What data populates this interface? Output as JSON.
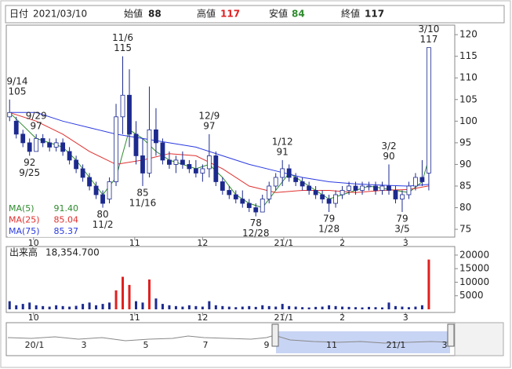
{
  "header": {
    "date_label": "日付",
    "date": "2021/03/10",
    "open_label": "始値",
    "open": 88,
    "high_label": "高値",
    "high": 117,
    "low_label": "安値",
    "low": 84,
    "close_label": "終値",
    "close": 117
  },
  "chart_data": [
    {
      "type": "candlestick",
      "open": [
        101,
        100,
        97,
        95,
        93,
        96,
        95,
        94,
        95,
        93,
        91,
        89,
        87,
        85,
        83,
        82,
        86,
        101,
        106,
        97,
        92,
        88,
        98,
        95,
        91,
        90,
        91,
        90,
        89,
        88,
        89,
        92,
        86,
        84,
        83,
        82,
        81,
        80,
        79,
        82,
        85,
        87,
        89,
        87,
        86,
        85,
        84,
        83,
        82,
        81,
        83,
        84,
        85,
        84,
        85,
        85,
        84,
        85,
        84,
        82,
        83,
        85,
        87,
        88
      ],
      "high": [
        105,
        101,
        98,
        96,
        97,
        97,
        96,
        96,
        96,
        94,
        92,
        90,
        88,
        86,
        84,
        87,
        104,
        115,
        112,
        100,
        96,
        108,
        103,
        96,
        93,
        92,
        93,
        91,
        91,
        90,
        97,
        93,
        87,
        85,
        84,
        84,
        82,
        81,
        83,
        86,
        88,
        91,
        90,
        88,
        87,
        86,
        85,
        84,
        83,
        84,
        85,
        86,
        86,
        86,
        86,
        86,
        86,
        90,
        85,
        84,
        86,
        88,
        91,
        117
      ],
      "low": [
        100,
        96,
        94,
        92,
        93,
        94,
        93,
        93,
        92,
        90,
        88,
        86,
        84,
        82,
        80,
        81,
        85,
        97,
        94,
        90,
        85,
        87,
        92,
        90,
        89,
        88,
        89,
        88,
        87,
        86,
        87,
        85,
        83,
        82,
        81,
        80,
        79,
        78,
        79,
        81,
        84,
        85,
        86,
        85,
        84,
        83,
        82,
        81,
        79,
        80,
        82,
        83,
        83,
        83,
        84,
        83,
        83,
        83,
        81,
        79,
        82,
        84,
        85,
        84
      ],
      "close": [
        102,
        97,
        95,
        93,
        96,
        95,
        94,
        95,
        93,
        91,
        89,
        87,
        85,
        83,
        81,
        86,
        101,
        106,
        97,
        92,
        88,
        98,
        95,
        91,
        90,
        91,
        90,
        89,
        88,
        89,
        92,
        86,
        84,
        83,
        82,
        81,
        80,
        79,
        82,
        85,
        87,
        89,
        87,
        86,
        85,
        84,
        83,
        82,
        81,
        83,
        84,
        85,
        84,
        85,
        85,
        84,
        85,
        84,
        82,
        83,
        85,
        87,
        86,
        117
      ],
      "up_color": "#ffffff",
      "down_color": "#1c2a8f",
      "xlim": [
        -0.5,
        66.9
      ],
      "xticks": [
        {
          "value": 3.6,
          "label": "10"
        },
        {
          "value": 18.8,
          "label": "11"
        },
        {
          "value": 29,
          "label": "12"
        },
        {
          "value": 41.2,
          "label": "21/1"
        },
        {
          "value": 50,
          "label": "2"
        },
        {
          "value": 59.5,
          "label": "3"
        }
      ],
      "ylim": [
        73.2,
        122.2
      ],
      "yticks": [
        75,
        80,
        85,
        90,
        95,
        100,
        105,
        110,
        115,
        120
      ],
      "ma_lines": [
        {
          "name": "MA(5)",
          "last": "91.40",
          "color": "#2e8b2e",
          "x": [
            0,
            2,
            4,
            6,
            8,
            10,
            12,
            14,
            16,
            18,
            20,
            22,
            24,
            26,
            28,
            30,
            32,
            34,
            36,
            38,
            40,
            42,
            44,
            46,
            48,
            50,
            52,
            54,
            56,
            58,
            60,
            62,
            63
          ],
          "values": [
            102,
            99,
            96,
            95,
            94,
            91,
            87,
            83,
            87,
            98,
            96,
            93,
            91,
            90,
            89,
            90,
            87,
            83,
            81,
            80,
            84,
            88,
            86,
            84,
            82,
            83,
            84,
            85,
            84.5,
            84,
            83.5,
            86,
            91.4
          ]
        },
        {
          "name": "MA(25)",
          "last": "85.04",
          "color": "#e03030",
          "x": [
            0,
            4,
            8,
            12,
            16,
            20,
            24,
            28,
            32,
            36,
            40,
            44,
            48,
            52,
            56,
            60,
            63
          ],
          "values": [
            102,
            100,
            97,
            93,
            90,
            91,
            92.5,
            92,
            89,
            85,
            83.5,
            84,
            84,
            83.5,
            84,
            84.2,
            85.04
          ]
        },
        {
          "name": "MA(75)",
          "last": "85.37",
          "color": "#2a3ae0",
          "x": [
            0,
            4,
            8,
            12,
            16,
            20,
            24,
            28,
            32,
            36,
            40,
            44,
            48,
            52,
            56,
            60,
            63
          ],
          "values": [
            102,
            102,
            100,
            98.5,
            97,
            96,
            95,
            94,
            92,
            90,
            88.5,
            87,
            86,
            85.5,
            85.2,
            85,
            85.37
          ]
        }
      ],
      "annotations": [
        {
          "date": "9/14",
          "value": 105,
          "kind": "high"
        },
        {
          "date": "9/25",
          "value": 92,
          "kind": "low"
        },
        {
          "date": "9/29",
          "value": 97,
          "kind": "high"
        },
        {
          "date": "11/2",
          "value": 80,
          "kind": "low"
        },
        {
          "date": "11/6",
          "value": 115,
          "kind": "high"
        },
        {
          "date": "11/16",
          "value": 85,
          "kind": "low"
        },
        {
          "date": "12/9",
          "value": 97,
          "kind": "high"
        },
        {
          "date": "12/28",
          "value": 78,
          "kind": "low"
        },
        {
          "date": "1/12",
          "value": 91,
          "kind": "high"
        },
        {
          "date": "1/28",
          "value": 79,
          "kind": "low"
        },
        {
          "date": "3/2",
          "value": 90,
          "kind": "high"
        },
        {
          "date": "3/5",
          "value": 79,
          "kind": "low"
        },
        {
          "date": "3/10",
          "value": 117,
          "kind": "high"
        }
      ]
    },
    {
      "type": "bar",
      "title": "出来高",
      "last": "18,354.700",
      "values": [
        3000,
        1500,
        2000,
        2500,
        1500,
        1200,
        1000,
        1500,
        1200,
        1000,
        1300,
        2000,
        2500,
        1500,
        2000,
        2500,
        7000,
        12000,
        9000,
        3000,
        2500,
        11000,
        4000,
        2000,
        1500,
        1200,
        1000,
        1500,
        1200,
        1000,
        3000,
        1500,
        1200,
        1000,
        800,
        1000,
        1200,
        900,
        1500,
        1200,
        1000,
        2000,
        1200,
        1000,
        800,
        700,
        900,
        1000,
        1500,
        1200,
        1000,
        900,
        800,
        700,
        900,
        800,
        700,
        2500,
        1200,
        1000,
        800,
        1000,
        1500,
        18354.7
      ],
      "colors": [
        "#1c2a8f",
        "#1c2a8f",
        "#1c2a8f",
        "#1c2a8f",
        "#1c2a8f",
        "#1c2a8f",
        "#1c2a8f",
        "#1c2a8f",
        "#1c2a8f",
        "#1c2a8f",
        "#1c2a8f",
        "#1c2a8f",
        "#1c2a8f",
        "#1c2a8f",
        "#1c2a8f",
        "#1c2a8f",
        "#e02020",
        "#e02020",
        "#e02020",
        "#1c2a8f",
        "#1c2a8f",
        "#e02020",
        "#1c2a8f",
        "#1c2a8f",
        "#1c2a8f",
        "#1c2a8f",
        "#1c2a8f",
        "#1c2a8f",
        "#1c2a8f",
        "#1c2a8f",
        "#1c2a8f",
        "#1c2a8f",
        "#1c2a8f",
        "#1c2a8f",
        "#1c2a8f",
        "#1c2a8f",
        "#1c2a8f",
        "#1c2a8f",
        "#1c2a8f",
        "#1c2a8f",
        "#1c2a8f",
        "#1c2a8f",
        "#1c2a8f",
        "#1c2a8f",
        "#1c2a8f",
        "#1c2a8f",
        "#1c2a8f",
        "#1c2a8f",
        "#1c2a8f",
        "#1c2a8f",
        "#1c2a8f",
        "#1c2a8f",
        "#1c2a8f",
        "#1c2a8f",
        "#1c2a8f",
        "#1c2a8f",
        "#1c2a8f",
        "#1c2a8f",
        "#1c2a8f",
        "#1c2a8f",
        "#1c2a8f",
        "#1c2a8f",
        "#1c2a8f",
        "#e02020"
      ],
      "xlim": [
        -0.5,
        66.9
      ],
      "ylim": [
        0,
        22000
      ],
      "yticks": [
        5000,
        10000,
        15000,
        20000
      ]
    }
  ],
  "navigator": {
    "labels": [
      "20/1",
      "3",
      "5",
      "7",
      "9",
      "11",
      "21/1",
      "3"
    ]
  }
}
